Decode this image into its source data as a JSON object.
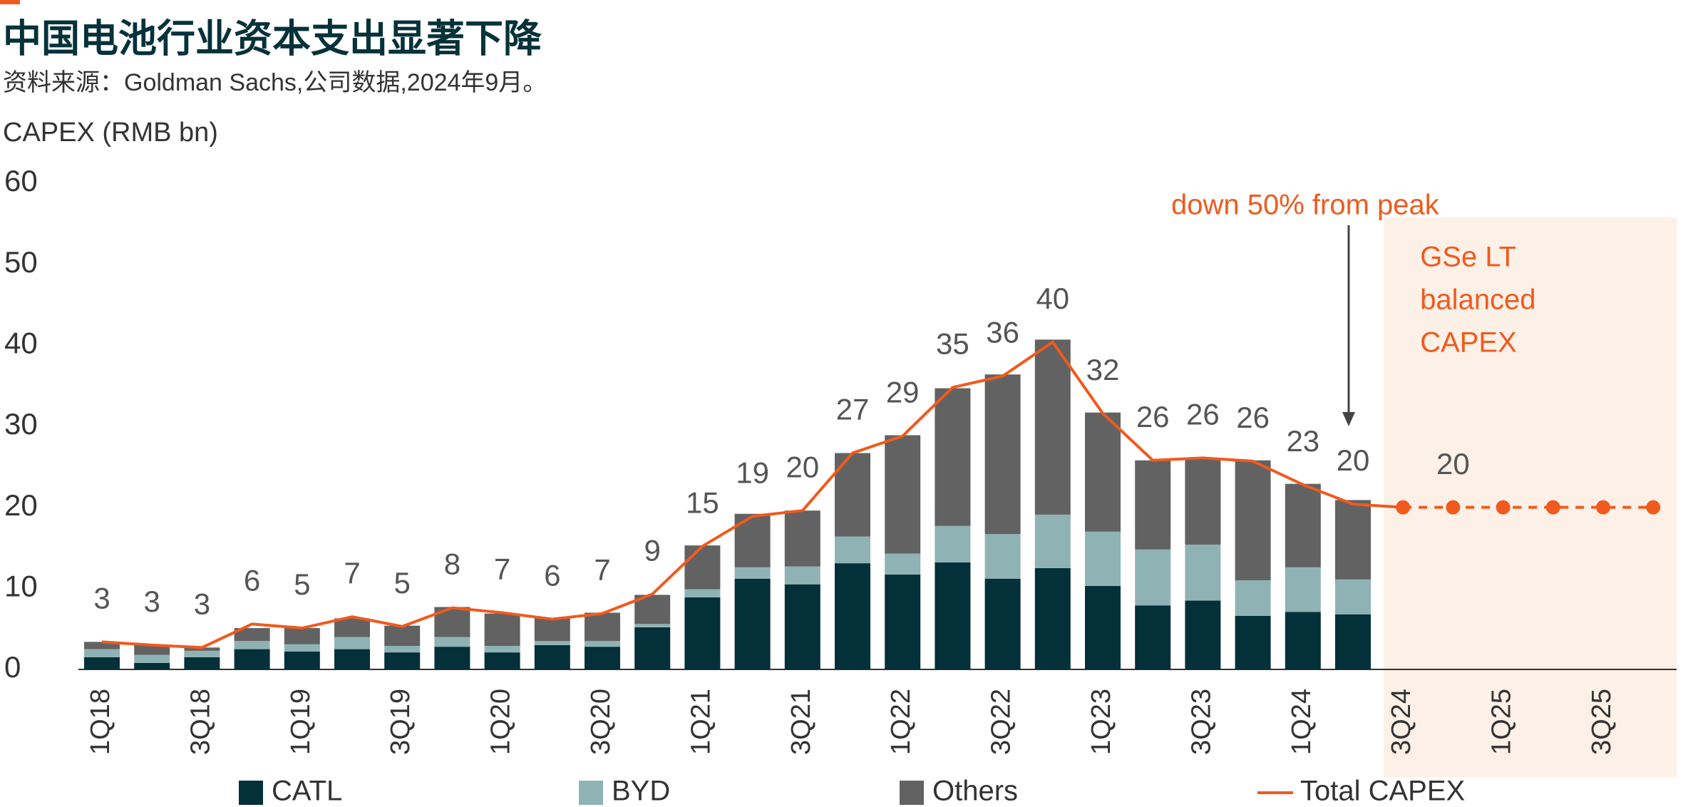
{
  "chart_data": {
    "type": "bar",
    "stacked": true,
    "title": "中国电池行业资本支出显著下降",
    "subtitle": "资料来源：Goldman Sachs,公司数据,2024年9月。",
    "y_label": "CAPEX (RMB bn)",
    "annotation": "down 50% from peak",
    "forecast_label": [
      "GSe LT",
      "balanced",
      "CAPEX"
    ],
    "categories": [
      "1Q18",
      null,
      "3Q18",
      null,
      "1Q19",
      null,
      "3Q19",
      null,
      "1Q20",
      null,
      "3Q20",
      null,
      "1Q21",
      null,
      "3Q21",
      null,
      "1Q22",
      null,
      "3Q22",
      null,
      "1Q23",
      null,
      "3Q23",
      null,
      "1Q24",
      null,
      "3Q24",
      null,
      "1Q25",
      null,
      "3Q25",
      null
    ],
    "ylim": [
      0,
      60
    ],
    "yticks": [
      0,
      10,
      20,
      30,
      40,
      50,
      60
    ],
    "grid": false,
    "series": [
      {
        "name": "CATL",
        "color": "#033039",
        "values": [
          1.5,
          0.8,
          1.5,
          2.5,
          2.2,
          2.5,
          2.1,
          2.8,
          2.1,
          3.0,
          2.8,
          5.2,
          8.9,
          11.2,
          10.5,
          13.1,
          11.7,
          13.2,
          11.2,
          12.5,
          10.3,
          7.9,
          8.5,
          6.6,
          7.1,
          6.8,
          null,
          null,
          null,
          null,
          null,
          null
        ]
      },
      {
        "name": "BYD",
        "color": "#8fb3b4",
        "values": [
          1.0,
          1.0,
          0.8,
          1.0,
          0.9,
          1.5,
          0.8,
          1.2,
          0.8,
          0.5,
          0.7,
          0.4,
          1.0,
          1.4,
          2.2,
          3.3,
          2.6,
          4.5,
          5.5,
          6.6,
          6.7,
          6.9,
          6.9,
          4.4,
          5.5,
          4.3,
          null,
          null,
          null,
          null,
          null,
          null
        ]
      },
      {
        "name": "Others",
        "color": "#626262",
        "values": [
          0.9,
          1.2,
          0.4,
          1.6,
          2.0,
          2.3,
          2.5,
          3.7,
          4.0,
          2.8,
          3.5,
          3.6,
          5.4,
          6.6,
          6.9,
          10.3,
          14.6,
          17.0,
          19.7,
          21.6,
          14.7,
          11.0,
          10.7,
          14.8,
          10.3,
          9.8,
          null,
          null,
          null,
          null,
          null,
          null
        ]
      },
      {
        "name": "Total CAPEX",
        "type": "line",
        "color": "#f05a1e",
        "values": [
          3.4,
          3.0,
          2.7,
          5.6,
          5.1,
          6.5,
          5.3,
          7.6,
          7.0,
          6.2,
          6.9,
          9.3,
          15.2,
          18.9,
          19.6,
          26.7,
          28.8,
          34.8,
          36.2,
          40.4,
          31.6,
          25.8,
          26.1,
          25.7,
          22.8,
          20.4,
          20,
          20,
          20,
          20,
          20,
          20
        ],
        "value_labels": [
          "3",
          "3",
          "3",
          "6",
          "5",
          "7",
          "5",
          "8",
          "7",
          "6",
          "7",
          "9",
          "15",
          "19",
          "20",
          "27",
          "29",
          "35",
          "36",
          "40",
          "32",
          "26",
          "26",
          "26",
          "23",
          "20",
          null,
          "20",
          null,
          null,
          null,
          null
        ]
      }
    ]
  }
}
